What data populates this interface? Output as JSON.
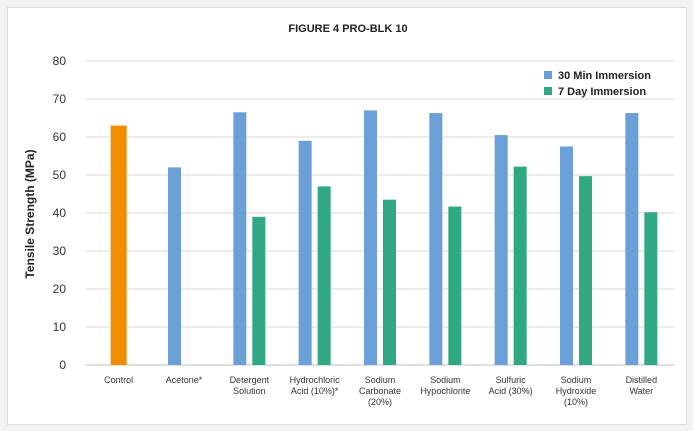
{
  "chart_data": {
    "type": "bar",
    "title": "FIGURE 4 PRO-BLK 10",
    "xlabel": "",
    "ylabel": "Tensile Strength (MPa)",
    "ylim": [
      0,
      80
    ],
    "yticks": [
      0,
      10,
      20,
      30,
      40,
      50,
      60,
      70,
      80
    ],
    "grid": true,
    "legend_position": "top-right",
    "categories": [
      [
        "Control"
      ],
      [
        "Acetone*"
      ],
      [
        "Detergent",
        "Solution"
      ],
      [
        "Hydrochloric",
        "Acid (10%)*"
      ],
      [
        "Sodium",
        "Carbonate",
        "(20%)"
      ],
      [
        "Sodium",
        "Hypochlorite"
      ],
      [
        "Sulfuric",
        "Acid (30%)"
      ],
      [
        "Sodium",
        "Hydroxide",
        "(10%)"
      ],
      [
        "Distilled",
        "Water"
      ]
    ],
    "control": {
      "category_index": 0,
      "value": 63,
      "color": "#f28c00"
    },
    "series": [
      {
        "name": "30 Min Immersion",
        "color": "#6a9fd8",
        "values": [
          null,
          52,
          66.5,
          59,
          67,
          66.3,
          60.5,
          57.5,
          66.3
        ]
      },
      {
        "name": "7 Day Immersion",
        "color": "#2fa883",
        "values": [
          null,
          null,
          39,
          47,
          43.5,
          41.7,
          52.2,
          49.7,
          40.2
        ]
      }
    ]
  }
}
